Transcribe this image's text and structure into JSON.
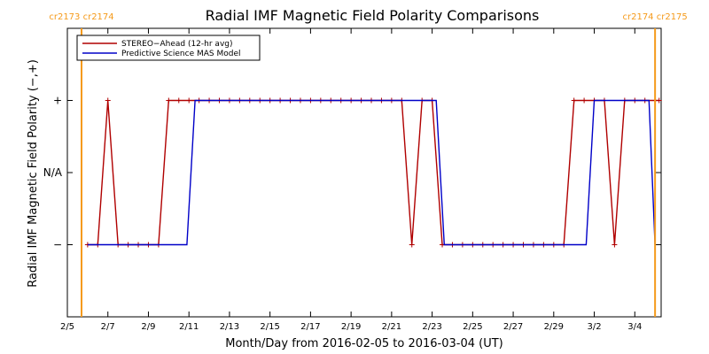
{
  "chart_data": {
    "type": "line",
    "title": "Radial IMF Magnetic Field Polarity Comparisons",
    "xlabel": "Month/Day from 2016-02-05 to 2016-03-04 (UT)",
    "ylabel": "Radial IMF Magnetic Field Polarity (−,+)",
    "xlim": [
      0,
      29.3
    ],
    "ylim": [
      -2,
      2
    ],
    "x_ticks": [
      {
        "x": 0,
        "label": "2/5"
      },
      {
        "x": 2,
        "label": "2/7"
      },
      {
        "x": 4,
        "label": "2/9"
      },
      {
        "x": 6,
        "label": "2/11"
      },
      {
        "x": 8,
        "label": "2/13"
      },
      {
        "x": 10,
        "label": "2/15"
      },
      {
        "x": 12,
        "label": "2/17"
      },
      {
        "x": 14,
        "label": "2/19"
      },
      {
        "x": 16,
        "label": "2/21"
      },
      {
        "x": 18,
        "label": "2/23"
      },
      {
        "x": 20,
        "label": "2/25"
      },
      {
        "x": 22,
        "label": "2/27"
      },
      {
        "x": 24,
        "label": "2/29"
      },
      {
        "x": 26,
        "label": "3/2"
      },
      {
        "x": 28,
        "label": "3/4"
      }
    ],
    "y_ticks": [
      {
        "y": 1,
        "label": "+"
      },
      {
        "y": 0,
        "label": "N/A"
      },
      {
        "y": -1,
        "label": "−"
      }
    ],
    "carrington_markers": [
      {
        "x": 0.7,
        "labels": [
          "cr2173",
          "cr2174"
        ]
      },
      {
        "x": 29.0,
        "labels": [
          "cr2174",
          "cr2175"
        ]
      }
    ],
    "legend": {
      "position": "top-left"
    },
    "series": [
      {
        "name": "STEREO−Ahead (12-hr avg)",
        "color": "#b00000",
        "markers": true,
        "x": [
          1.0,
          1.5,
          2.0,
          2.5,
          3.0,
          3.5,
          4.0,
          4.5,
          5.0,
          5.5,
          6.0,
          6.5,
          7.0,
          7.5,
          8.0,
          8.5,
          9.0,
          9.5,
          10.0,
          10.5,
          11.0,
          11.5,
          12.0,
          12.5,
          13.0,
          13.5,
          14.0,
          14.5,
          15.0,
          15.5,
          16.0,
          16.5,
          17.0,
          17.5,
          18.0,
          18.5,
          19.0,
          19.5,
          20.0,
          20.5,
          21.0,
          21.5,
          22.0,
          22.5,
          23.0,
          23.5,
          24.0,
          24.5,
          25.0,
          25.5,
          26.0,
          26.5,
          27.0,
          27.5,
          28.0,
          28.5,
          29.0,
          29.2
        ],
        "y": [
          -1,
          -1,
          1,
          -1,
          -1,
          -1,
          -1,
          -1,
          1,
          1,
          1,
          1,
          1,
          1,
          1,
          1,
          1,
          1,
          1,
          1,
          1,
          1,
          1,
          1,
          1,
          1,
          1,
          1,
          1,
          1,
          1,
          1,
          -1,
          1,
          1,
          -1,
          -1,
          -1,
          -1,
          -1,
          -1,
          -1,
          -1,
          -1,
          -1,
          -1,
          -1,
          -1,
          1,
          1,
          1,
          1,
          -1,
          1,
          1,
          1,
          1,
          1
        ]
      },
      {
        "name": "Predictive Science MAS Model",
        "color": "#0000c8",
        "markers": false,
        "x": [
          1.0,
          5.9,
          6.3,
          18.2,
          18.6,
          25.6,
          26.0,
          28.7,
          29.0
        ],
        "y": [
          -1,
          -1,
          1,
          1,
          -1,
          -1,
          1,
          1,
          -1
        ]
      }
    ]
  }
}
